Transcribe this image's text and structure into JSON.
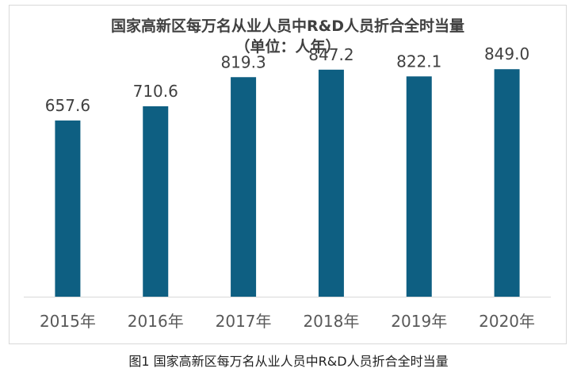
{
  "chart_data": {
    "type": "bar",
    "title": "国家高新区每万名从业人员中R&D人员折合全时当量",
    "subtitle": "（单位：人年）",
    "categories": [
      "2015年",
      "2016年",
      "2017年",
      "2018年",
      "2019年",
      "2020年"
    ],
    "values": [
      657.6,
      710.6,
      819.3,
      847.2,
      822.1,
      849.0
    ],
    "value_labels": [
      "657.6",
      "710.6",
      "819.3",
      "847.2",
      "822.1",
      "849.0"
    ],
    "ylim": [
      0,
      900
    ],
    "grid": false,
    "bar_color": "#0e5f82"
  },
  "caption": "图1 国家高新区每万名从业人员中R&D人员折合全时当量"
}
